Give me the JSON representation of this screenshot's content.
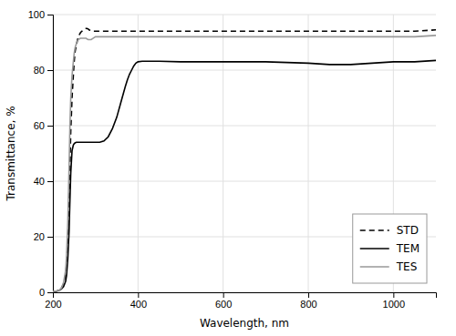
{
  "chart_data": {
    "type": "line",
    "xlabel": "Wavelength, nm",
    "ylabel": "Transmittance, %",
    "xlim": [
      200,
      1100
    ],
    "ylim": [
      0,
      100
    ],
    "xticks": [
      200,
      400,
      600,
      800,
      1000
    ],
    "yticks": [
      0,
      20,
      40,
      60,
      80,
      100
    ],
    "grid": true,
    "legend": "lower right",
    "series": [
      {
        "name": "STD",
        "color": "#000000",
        "line_style": "dashed",
        "x": [
          200,
          210,
          215,
          220,
          225,
          230,
          232,
          235,
          238,
          240,
          242,
          245,
          248,
          250,
          252,
          255,
          258,
          260,
          263,
          265,
          268,
          270,
          272,
          275,
          278,
          280,
          283,
          285,
          288,
          290,
          295,
          300,
          320,
          350,
          400,
          500,
          600,
          700,
          800,
          900,
          1000,
          1050,
          1100
        ],
        "values": [
          0.3,
          0.5,
          0.8,
          1.5,
          3.0,
          6.5,
          10.0,
          18.0,
          32.0,
          45.0,
          58.0,
          70.0,
          78.0,
          83.0,
          86.5,
          89.0,
          91.0,
          92.0,
          93.0,
          93.5,
          94.0,
          94.2,
          94.5,
          94.8,
          95.0,
          95.0,
          94.8,
          94.5,
          94.3,
          94.2,
          94.0,
          94.0,
          94.0,
          94.0,
          94.0,
          94.0,
          94.0,
          94.0,
          94.0,
          94.0,
          94.0,
          94.0,
          94.5
        ]
      },
      {
        "name": "TEM",
        "color": "#000000",
        "line_style": "solid",
        "x": [
          200,
          210,
          215,
          220,
          225,
          230,
          232,
          235,
          238,
          240,
          242,
          245,
          248,
          250,
          252,
          255,
          258,
          260,
          263,
          265,
          268,
          270,
          272,
          275,
          278,
          280,
          283,
          285,
          288,
          290,
          295,
          300,
          305,
          310,
          320,
          330,
          340,
          350,
          360,
          370,
          375,
          380,
          385,
          390,
          395,
          400,
          410,
          420,
          430,
          450,
          500,
          600,
          700,
          800,
          850,
          900,
          950,
          1000,
          1050,
          1100
        ],
        "values": [
          0.3,
          0.5,
          0.7,
          1.2,
          2.0,
          4.0,
          6.0,
          12.0,
          22.0,
          33.0,
          43.0,
          51.0,
          53.0,
          53.5,
          53.8,
          54.0,
          54.0,
          54.0,
          54.0,
          54.0,
          54.0,
          54.0,
          54.0,
          54.0,
          54.0,
          54.0,
          54.0,
          54.0,
          54.0,
          54.0,
          54.0,
          54.0,
          54.0,
          54.0,
          54.5,
          56.0,
          59.0,
          63.0,
          68.5,
          74.0,
          76.5,
          78.5,
          80.0,
          81.5,
          82.5,
          83.0,
          83.2,
          83.2,
          83.2,
          83.2,
          83.0,
          83.0,
          83.0,
          82.5,
          82.0,
          82.0,
          82.5,
          83.0,
          83.0,
          83.5
        ]
      },
      {
        "name": "TES",
        "color": "#999999",
        "line_style": "solid",
        "x": [
          200,
          210,
          215,
          220,
          225,
          230,
          232,
          235,
          238,
          240,
          242,
          245,
          248,
          250,
          252,
          255,
          258,
          260,
          263,
          265,
          268,
          270,
          272,
          275,
          278,
          280,
          283,
          285,
          288,
          290,
          295,
          300,
          310,
          320,
          340,
          360,
          380,
          400,
          430,
          500,
          600,
          700,
          800,
          900,
          1000,
          1050,
          1100
        ],
        "values": [
          0.3,
          0.5,
          0.8,
          1.5,
          3.5,
          8.0,
          13.0,
          25.0,
          45.0,
          60.0,
          70.0,
          78.0,
          83.0,
          86.0,
          88.0,
          89.5,
          90.5,
          91.0,
          91.3,
          91.5,
          91.5,
          91.5,
          91.5,
          91.5,
          91.5,
          91.2,
          91.0,
          91.0,
          91.0,
          91.0,
          91.5,
          92.0,
          92.0,
          92.0,
          92.0,
          92.0,
          92.0,
          92.0,
          92.0,
          92.0,
          92.0,
          92.0,
          92.0,
          92.0,
          92.0,
          92.0,
          92.5
        ]
      }
    ]
  }
}
